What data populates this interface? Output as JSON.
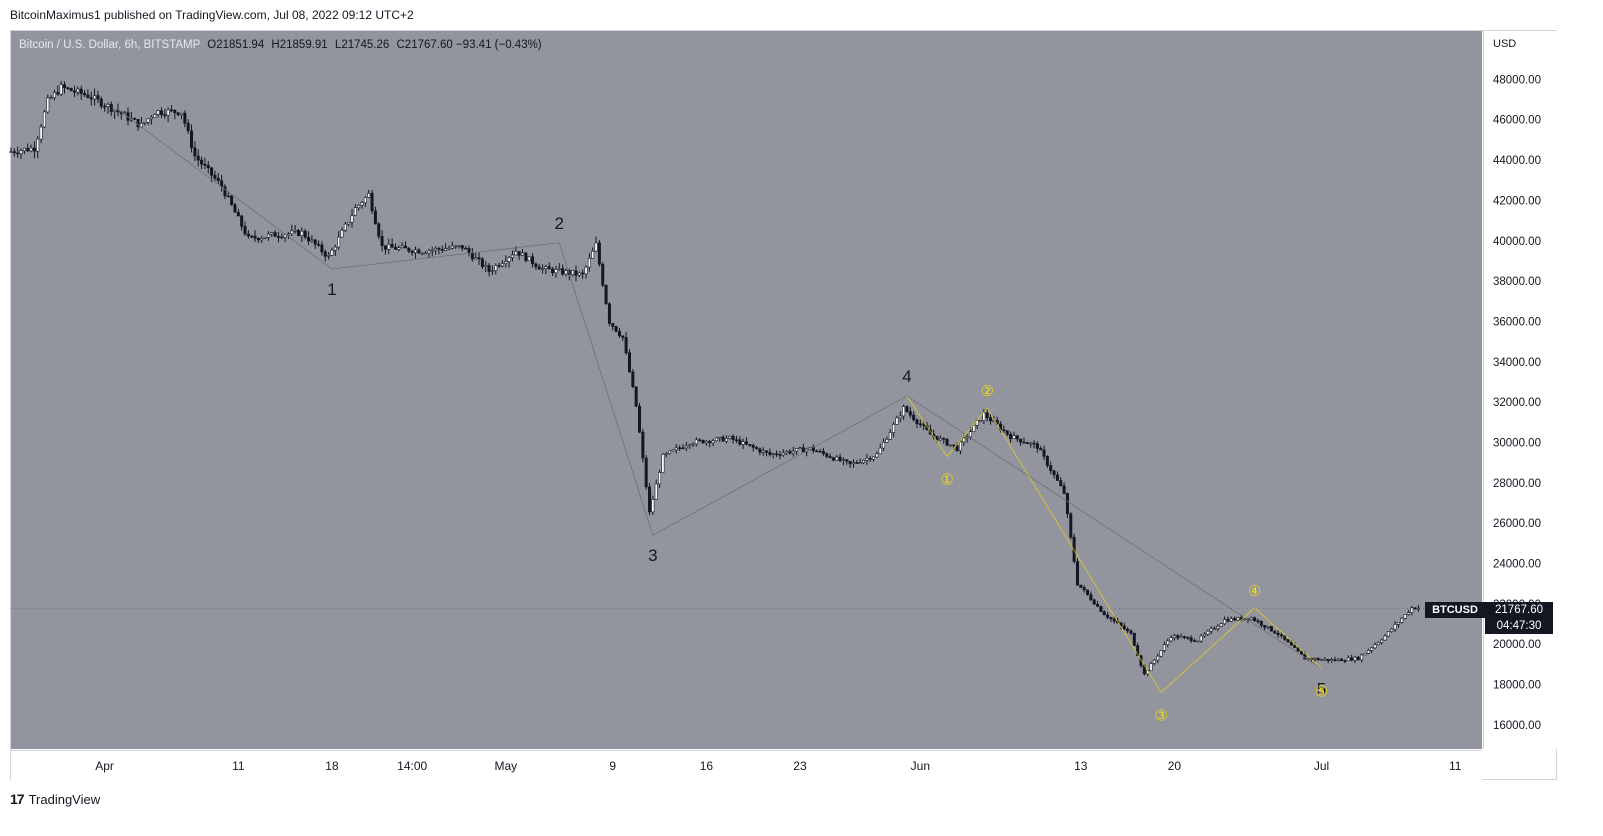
{
  "header": {
    "author": "BitcoinMaximus1",
    "published_text": "published on TradingView.com, Jul 08, 2022 09:12 UTC+2"
  },
  "legend": {
    "symbol_desc": "Bitcoin / U.S. Dollar, 6h, BITSTAMP",
    "o_label": "O",
    "o_value": "21851.94",
    "h_label": "H",
    "h_value": "21859.91",
    "l_label": "L",
    "l_value": "21745.26",
    "c_label": "C",
    "c_value": "21767.60",
    "change": "−93.41 (−0.43%)"
  },
  "price_axis": {
    "currency": "USD",
    "last_symbol": "BTCUSD",
    "last_price": "21767.60",
    "countdown": "04:47:30"
  },
  "footer": {
    "brand": "TradingView",
    "logo_mark": "17"
  },
  "colors": {
    "background": "#93959e",
    "candles": "#131722",
    "wave_line": "#6e7079",
    "sub_wave": "#f5d90a",
    "price_tag": "#131722"
  },
  "chart_data": {
    "type": "candlestick",
    "title": "",
    "xlabel": "",
    "ylabel": "",
    "ylim": [
      14800,
      50400
    ],
    "yticks": [
      16000,
      18000,
      20000,
      22000,
      24000,
      26000,
      28000,
      30000,
      32000,
      34000,
      36000,
      38000,
      40000,
      42000,
      44000,
      46000,
      48000
    ],
    "ytick_labels": [
      "16000.00",
      "18000.00",
      "20000.00",
      "22000.00",
      "24000.00",
      "26000.00",
      "28000.00",
      "30000.00",
      "32000.00",
      "34000.00",
      "36000.00",
      "38000.00",
      "40000.00",
      "42000.00",
      "44000.00",
      "46000.00",
      "48000.00"
    ],
    "x_start": "2022-03-25",
    "x_end": "2022-07-13",
    "xticks": [
      {
        "date": "2022-04-01",
        "label": "Apr"
      },
      {
        "date": "2022-04-11",
        "label": "11"
      },
      {
        "date": "2022-04-18",
        "label": "18"
      },
      {
        "date": "2022-04-24",
        "label": "14:00"
      },
      {
        "date": "2022-05-01",
        "label": "May"
      },
      {
        "date": "2022-05-09",
        "label": "9"
      },
      {
        "date": "2022-05-16",
        "label": "16"
      },
      {
        "date": "2022-05-23",
        "label": "23"
      },
      {
        "date": "2022-06-01",
        "label": "Jun"
      },
      {
        "date": "2022-06-13",
        "label": "13"
      },
      {
        "date": "2022-06-20",
        "label": "20"
      },
      {
        "date": "2022-07-01",
        "label": "Jul"
      },
      {
        "date": "2022-07-11",
        "label": "11"
      }
    ],
    "series_path": [
      [
        "2022-03-25",
        44400
      ],
      [
        "2022-03-27",
        44600
      ],
      [
        "2022-03-28",
        46900
      ],
      [
        "2022-03-29",
        47600
      ],
      [
        "2022-03-31",
        47200
      ],
      [
        "2022-04-02",
        46500
      ],
      [
        "2022-04-04",
        45700
      ],
      [
        "2022-04-05",
        46400
      ],
      [
        "2022-04-07",
        46400
      ],
      [
        "2022-04-08",
        44200
      ],
      [
        "2022-04-10",
        42700
      ],
      [
        "2022-04-12",
        40100
      ],
      [
        "2022-04-14",
        40300
      ],
      [
        "2022-04-16",
        40400
      ],
      [
        "2022-04-18",
        39200
      ],
      [
        "2022-04-20",
        41600
      ],
      [
        "2022-04-21",
        42300
      ],
      [
        "2022-04-22",
        39700
      ],
      [
        "2022-04-25",
        39500
      ],
      [
        "2022-04-28",
        39700
      ],
      [
        "2022-04-30",
        38500
      ],
      [
        "2022-05-02",
        39500
      ],
      [
        "2022-05-04",
        38600
      ],
      [
        "2022-05-07",
        38300
      ],
      [
        "2022-05-08",
        39800
      ],
      [
        "2022-05-09",
        36000
      ],
      [
        "2022-05-10",
        35200
      ],
      [
        "2022-05-11",
        31800
      ],
      [
        "2022-05-12",
        26500
      ],
      [
        "2022-05-13",
        29300
      ],
      [
        "2022-05-15",
        30000
      ],
      [
        "2022-05-18",
        30200
      ],
      [
        "2022-05-21",
        29400
      ],
      [
        "2022-05-24",
        29700
      ],
      [
        "2022-05-27",
        28900
      ],
      [
        "2022-05-29",
        29400
      ],
      [
        "2022-05-31",
        31700
      ],
      [
        "2022-06-02",
        30400
      ],
      [
        "2022-06-04",
        29700
      ],
      [
        "2022-06-06",
        31400
      ],
      [
        "2022-06-08",
        30300
      ],
      [
        "2022-06-10",
        29800
      ],
      [
        "2022-06-12",
        27500
      ],
      [
        "2022-06-13",
        23000
      ],
      [
        "2022-06-15",
        21500
      ],
      [
        "2022-06-17",
        20500
      ],
      [
        "2022-06-18",
        18500
      ],
      [
        "2022-06-20",
        20400
      ],
      [
        "2022-06-22",
        20200
      ],
      [
        "2022-06-24",
        21200
      ],
      [
        "2022-06-26",
        21300
      ],
      [
        "2022-06-28",
        20500
      ],
      [
        "2022-06-30",
        19300
      ],
      [
        "2022-07-02",
        19200
      ],
      [
        "2022-07-04",
        19300
      ],
      [
        "2022-07-06",
        20400
      ],
      [
        "2022-07-08",
        21800
      ]
    ],
    "main_waves": [
      {
        "label": "1",
        "date": "2022-04-18",
        "value": 38600,
        "pos": "below"
      },
      {
        "label": "2",
        "date": "2022-05-05",
        "value": 39900,
        "pos": "above"
      },
      {
        "label": "3",
        "date": "2022-05-12",
        "value": 25400,
        "pos": "below"
      },
      {
        "label": "4",
        "date": "2022-05-31",
        "value": 32300,
        "pos": "above"
      },
      {
        "label": "5",
        "date": "2022-07-01",
        "value": 18800,
        "pos": "below"
      }
    ],
    "sub_waves": [
      {
        "label": "①",
        "date": "2022-06-03",
        "value": 29300,
        "pos": "below"
      },
      {
        "label": "②",
        "date": "2022-06-06",
        "value": 31700,
        "pos": "above"
      },
      {
        "label": "③",
        "date": "2022-06-19",
        "value": 17600,
        "pos": "below"
      },
      {
        "label": "④",
        "date": "2022-06-26",
        "value": 21800,
        "pos": "above"
      },
      {
        "label": "⑤",
        "date": "2022-07-01",
        "value": 18800,
        "pos": "below"
      }
    ],
    "main_path": [
      [
        "2022-04-02",
        46500
      ],
      [
        "2022-04-18",
        38600
      ],
      [
        "2022-05-05",
        39900
      ],
      [
        "2022-05-12",
        25400
      ],
      [
        "2022-05-31",
        32300
      ],
      [
        "2022-07-01",
        18800
      ]
    ],
    "sub_path": [
      [
        "2022-05-31",
        32300
      ],
      [
        "2022-06-03",
        29300
      ],
      [
        "2022-06-06",
        31700
      ],
      [
        "2022-06-19",
        17600
      ],
      [
        "2022-06-26",
        21800
      ],
      [
        "2022-07-01",
        18800
      ]
    ],
    "last_price": 21767.6
  }
}
